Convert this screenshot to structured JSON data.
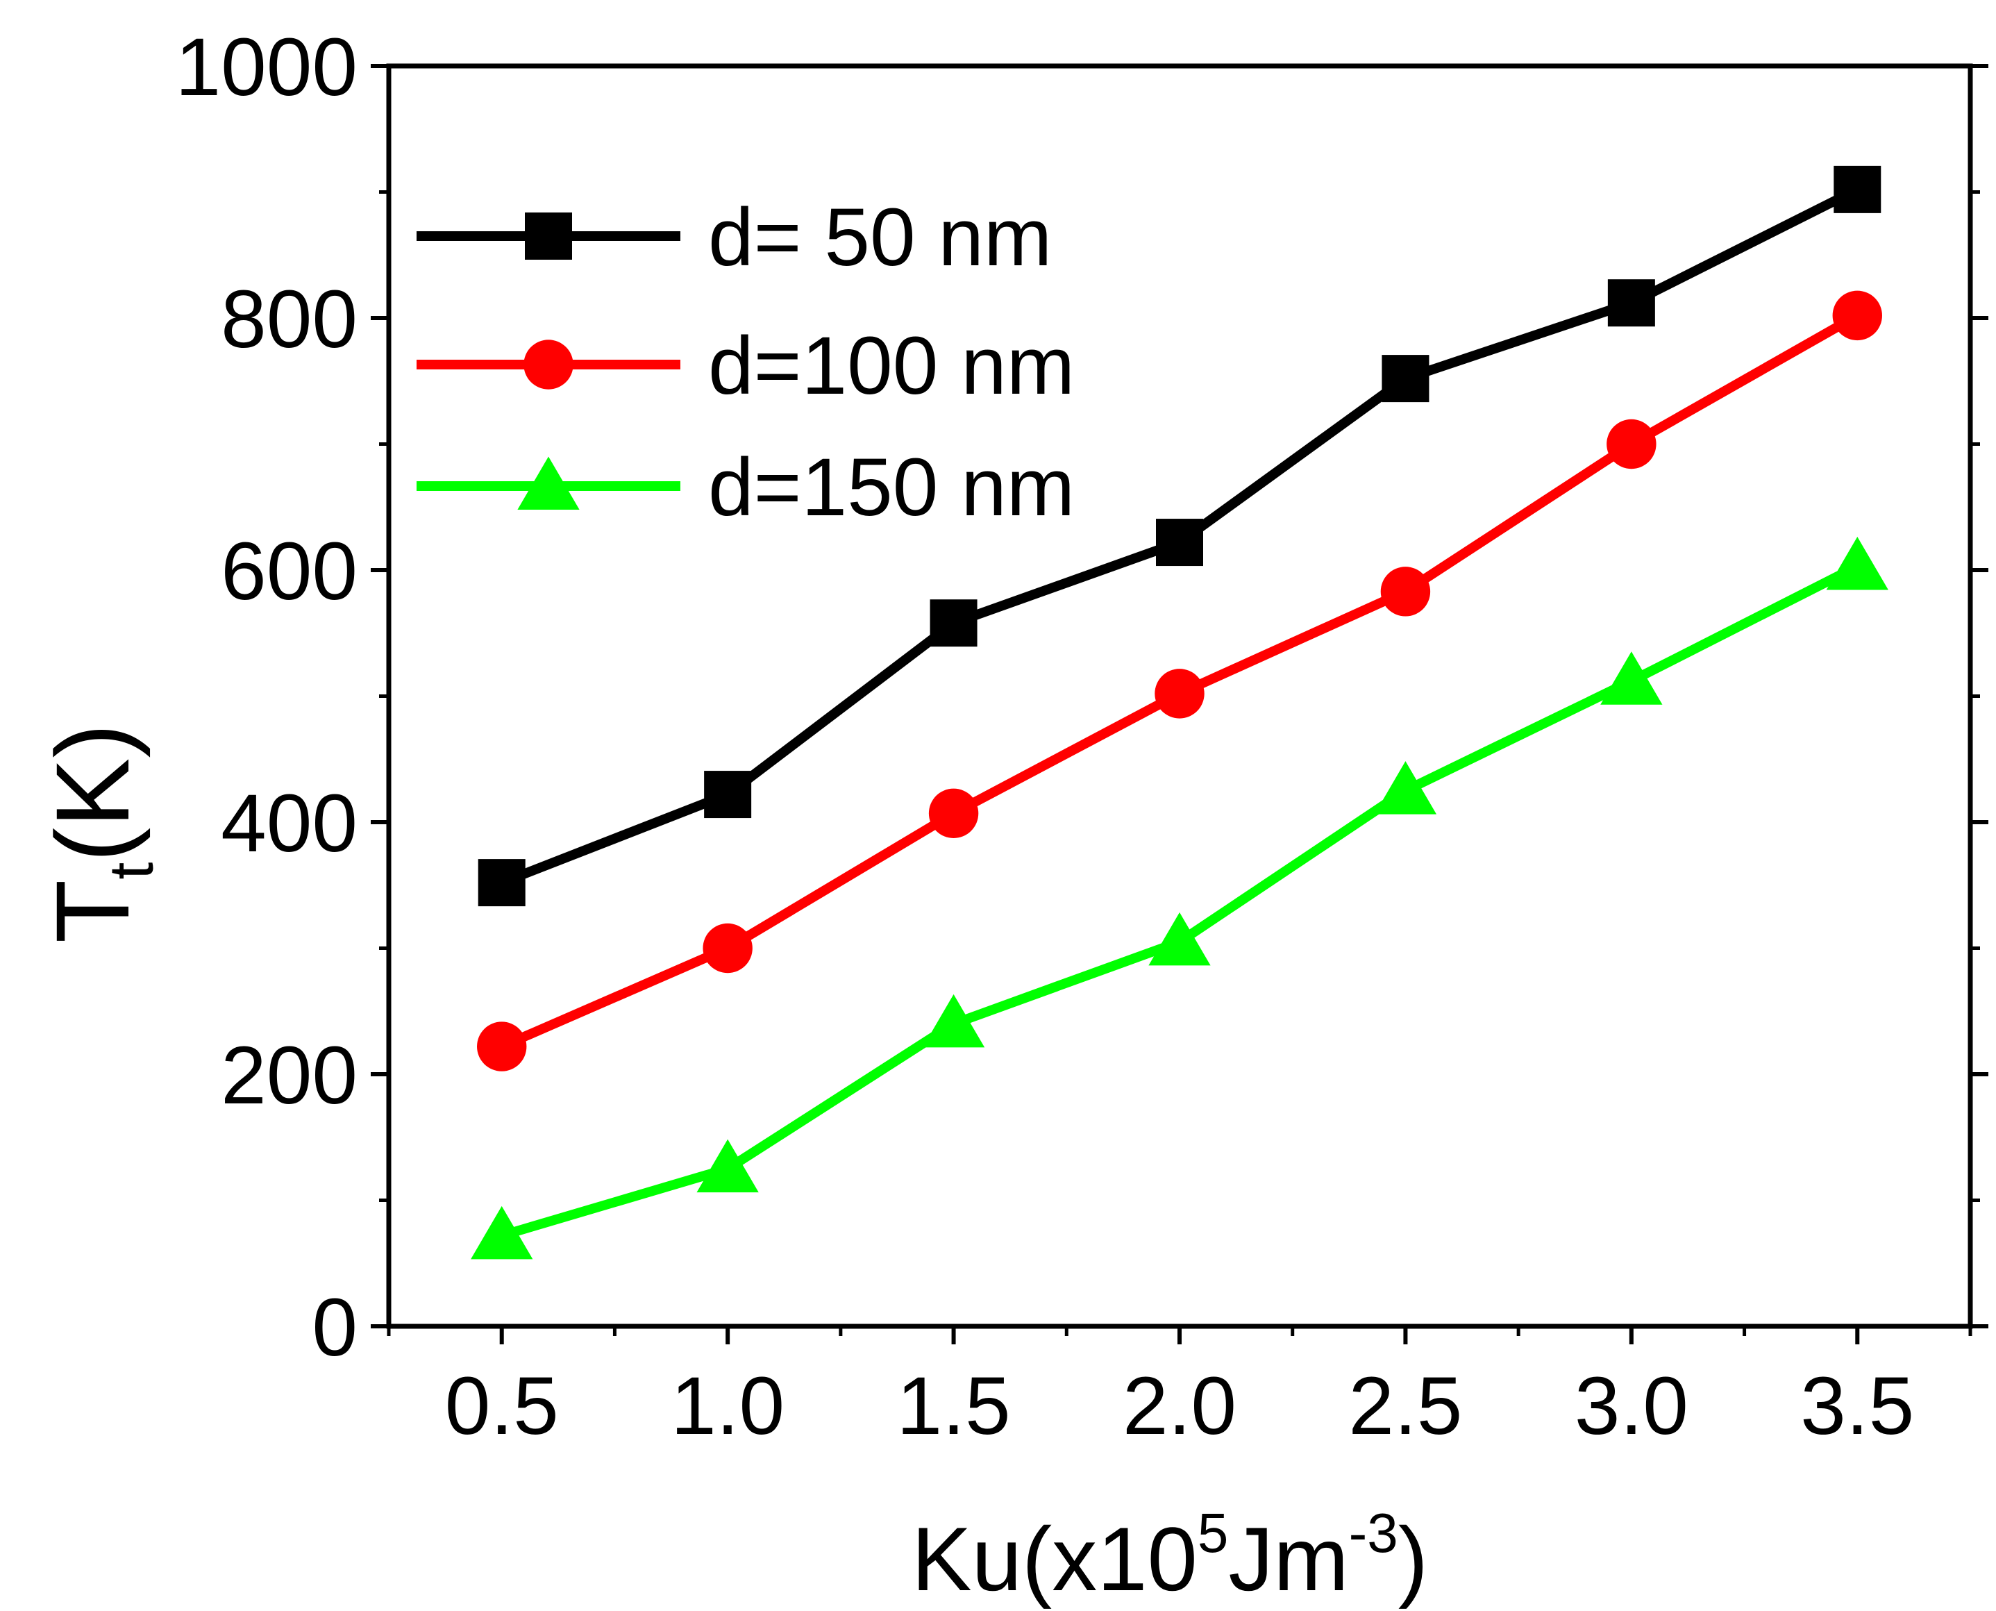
{
  "chart_data": {
    "type": "line",
    "title": "",
    "xlabel": {
      "main": "Ku(x10",
      "sup": "5",
      "unit": "Jm",
      "unit_sup": "-3",
      "close": ")"
    },
    "ylabel": {
      "main": "T",
      "sub": "t",
      "unit": "(K)"
    },
    "xlim": [
      0.25,
      3.75
    ],
    "ylim": [
      0,
      1000
    ],
    "x": [
      0.5,
      1.0,
      1.5,
      2.0,
      2.5,
      3.0,
      3.5
    ],
    "x_tick_labels": [
      "0.5",
      "1.0",
      "1.5",
      "2.0",
      "2.5",
      "3.0",
      "3.5"
    ],
    "y_ticks": [
      0,
      200,
      400,
      600,
      800,
      1000
    ],
    "y_tick_labels": [
      "0",
      "200",
      "400",
      "600",
      "800",
      "1000"
    ],
    "legend_position": "top-left",
    "grid": false,
    "series": [
      {
        "name": "d= 50 nm",
        "color": "#000000",
        "marker": "square",
        "values": [
          352,
          422,
          558,
          622,
          752,
          812,
          902
        ]
      },
      {
        "name": "d=100 nm",
        "color": "#ff0000",
        "marker": "circle",
        "values": [
          222,
          300,
          407,
          502,
          583,
          700,
          802
        ]
      },
      {
        "name": "d=150 nm",
        "color": "#00ff00",
        "marker": "triangle",
        "values": [
          72,
          125,
          240,
          305,
          425,
          512,
          603
        ]
      }
    ]
  }
}
